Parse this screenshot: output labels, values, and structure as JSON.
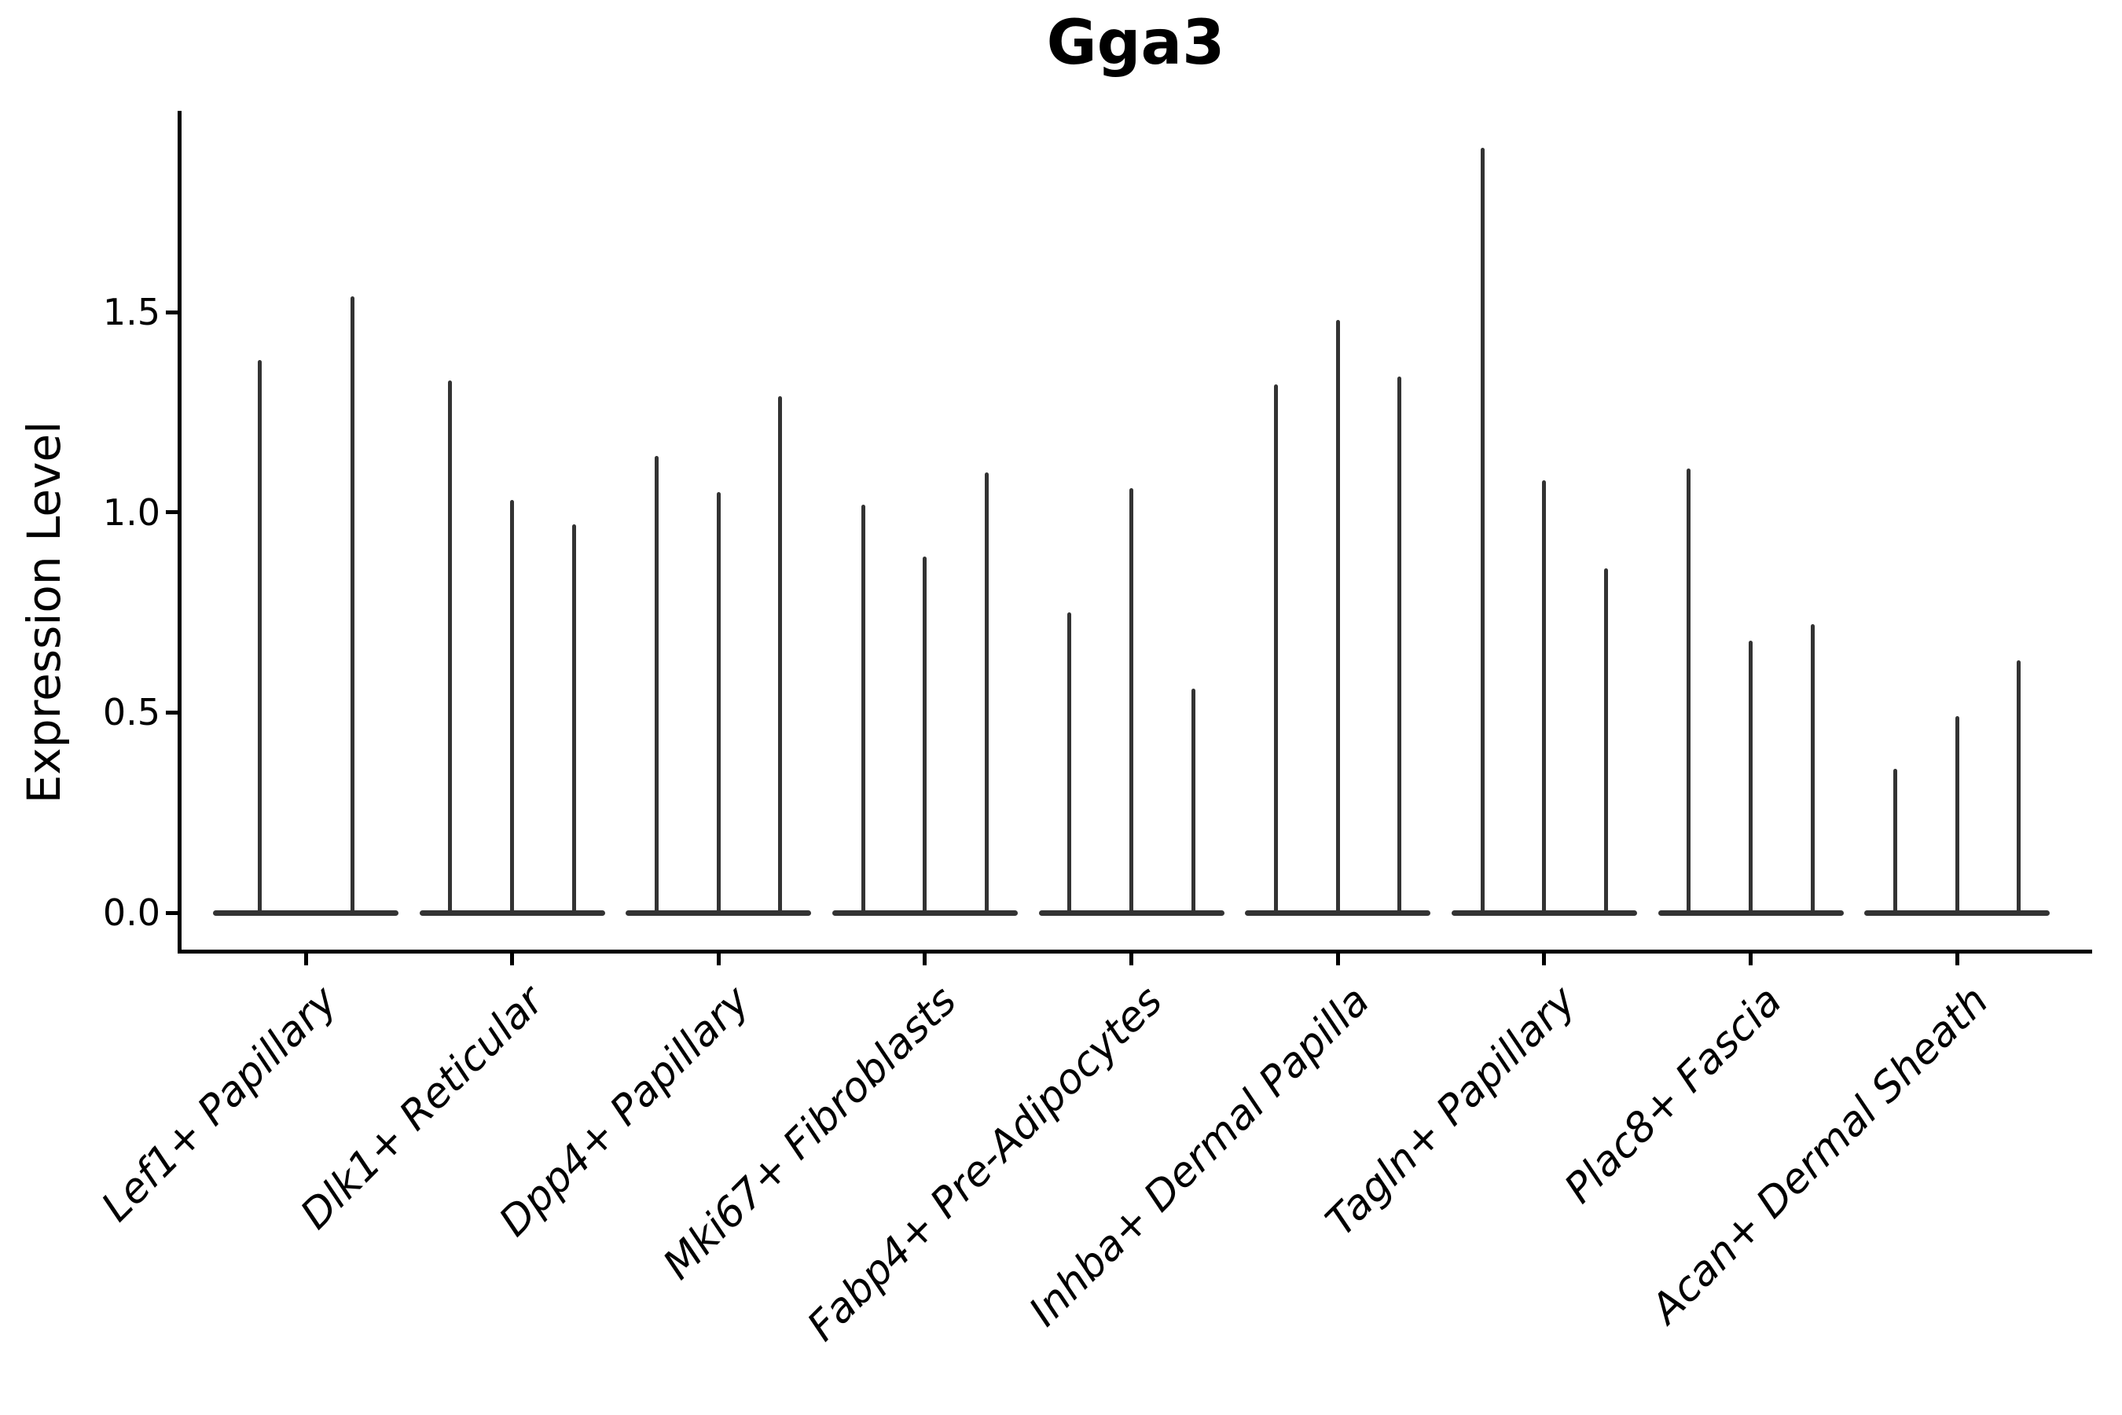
{
  "chart_data": {
    "type": "violin",
    "title": "Gga3",
    "ylabel": "Expression Level",
    "xlabel": "",
    "ytick_labels": [
      "0.0",
      "0.5",
      "1.0",
      "1.5"
    ],
    "ytick_values": [
      0.0,
      0.5,
      1.0,
      1.5
    ],
    "ylim": [
      0,
      2.0
    ],
    "grid": false,
    "legend": false,
    "x_labels_rotation_deg": 45,
    "x_labels_italic": true,
    "violin_color": "#333333",
    "axis_color": "#000000",
    "categories": [
      "Lef1+ Papillary",
      "Dlk1+ Reticular",
      "Dpp4+ Papillary",
      "Mki67+ Fibroblasts",
      "Fabp4+ Pre-Adipocytes",
      "Inhba+ Dermal Papilla",
      "Tagln+ Papillary",
      "Plac8+ Fascia",
      "Acan+ Dermal Sheath"
    ],
    "groups": [
      {
        "label": "Lef1+ Papillary",
        "spike_heights": [
          1.38,
          1.54
        ]
      },
      {
        "label": "Dlk1+ Reticular",
        "spike_heights": [
          1.33,
          1.03,
          0.97
        ]
      },
      {
        "label": "Dpp4+ Papillary",
        "spike_heights": [
          1.14,
          1.05,
          1.29
        ]
      },
      {
        "label": "Mki67+ Fibroblasts",
        "spike_heights": [
          1.02,
          0.89,
          1.1
        ]
      },
      {
        "label": "Fabp4+ Pre-Adipocytes",
        "spike_heights": [
          0.75,
          1.06,
          0.56
        ]
      },
      {
        "label": "Inhba+ Dermal Papilla",
        "spike_heights": [
          1.32,
          1.48,
          1.34
        ]
      },
      {
        "label": "Tagln+ Papillary",
        "spike_heights": [
          1.91,
          1.08,
          0.86
        ]
      },
      {
        "label": "Plac8+ Fascia",
        "spike_heights": [
          1.11,
          0.68,
          0.72
        ]
      },
      {
        "label": "Acan+ Dermal Sheath",
        "spike_heights": [
          0.36,
          0.49,
          0.63
        ]
      }
    ]
  }
}
